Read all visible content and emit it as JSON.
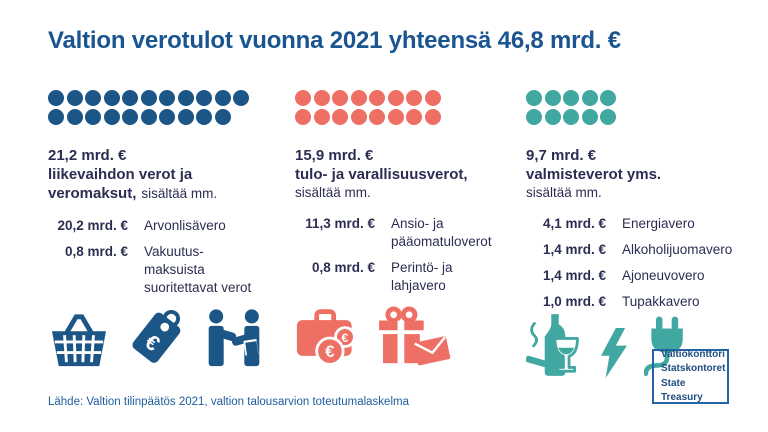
{
  "title": "Valtion verotulot vuonna 2021 yhteensä 46,8 mrd. €",
  "source": "Lähde: Valtion tilinpäätös 2021, valtion talousarvion toteutumalaskelma",
  "logo": {
    "lines": [
      "Valtiokonttori",
      "Statskontoret",
      "State Treasury"
    ]
  },
  "colors": {
    "title": "#1A5591",
    "text": "#2B2E52",
    "blue": "#1B5687",
    "coral": "#EE6F64",
    "teal": "#41A8A1",
    "source_text": "#1D5C9E",
    "divider": "#E6E6E6",
    "logo_border": "#2563A8",
    "background": "#FFFFFF"
  },
  "chart_data": {
    "type": "bar",
    "title": "Valtion verotulot vuonna 2021 yhteensä 46,8 mrd. €",
    "unit": "mrd. €",
    "total": 46.8,
    "categories": [
      "liikevaihdon verot ja veromaksut",
      "tulo- ja varallisuusverot",
      "valmisteverot yms."
    ],
    "values": [
      21.2,
      15.9,
      9.7
    ],
    "dot_unit_value": 1,
    "breakdown": [
      {
        "category": "liikevaihdon verot ja veromaksut",
        "items": [
          {
            "label": "Arvonlisävero",
            "value": 20.2
          },
          {
            "label": "Vakuutusmaksuista suoritettavat verot",
            "value": 0.8
          }
        ]
      },
      {
        "category": "tulo- ja varallisuusverot",
        "items": [
          {
            "label": "Ansio- ja pääomatuloverot",
            "value": 11.3
          },
          {
            "label": "Perintö- ja lahjavero",
            "value": 0.8
          }
        ]
      },
      {
        "category": "valmisteverot yms.",
        "items": [
          {
            "label": "Energiavero",
            "value": 4.1
          },
          {
            "label": "Alkoholijuomavero",
            "value": 1.4
          },
          {
            "label": "Ajoneuvovero",
            "value": 1.4
          },
          {
            "label": "Tupakkavero",
            "value": 1.0
          }
        ]
      }
    ]
  },
  "columns": [
    {
      "id": "turnover-taxes",
      "color": "#1B5687",
      "dots": {
        "row1": 11,
        "row2": 10
      },
      "heading": {
        "amount": "21,2 mrd. €",
        "name_lines": [
          "liikevaihdon verot ja",
          "veromaksut,"
        ],
        "note": "sisältää mm.",
        "note_inline": true
      },
      "items": [
        {
          "value": "20,2 mrd. €",
          "label_lines": [
            "Arvonlisävero"
          ]
        },
        {
          "value": "0,8 mrd. €",
          "label_lines": [
            "Vakuutus-",
            "maksuista",
            "suoritettavat verot"
          ]
        }
      ],
      "icons": [
        "shopping-basket",
        "price-tag-euro",
        "handshake"
      ]
    },
    {
      "id": "income-wealth-taxes",
      "color": "#EE6F64",
      "dots": {
        "row1": 8,
        "row2": 8
      },
      "heading": {
        "amount": "15,9 mrd. €",
        "name_lines": [
          "tulo- ja varallisuusverot,"
        ],
        "note": "sisältää mm.",
        "note_inline": false
      },
      "items": [
        {
          "value": "11,3 mrd. €",
          "label_lines": [
            "Ansio- ja",
            "pääomatuloverot"
          ]
        },
        {
          "value": "0,8 mrd. €",
          "label_lines": [
            "Perintö- ja",
            "lahjavero"
          ]
        }
      ],
      "icons": [
        "briefcase-euro",
        "gift-envelope"
      ]
    },
    {
      "id": "excise-taxes",
      "color": "#41A8A1",
      "dots": {
        "row1": 5,
        "row2": 5
      },
      "heading": {
        "amount": "9,7 mrd. €",
        "name_lines": [
          "valmisteverot yms."
        ],
        "note": "sisältää mm.",
        "note_inline": false
      },
      "items": [
        {
          "value": "4,1 mrd. €",
          "label_lines": [
            "Energiavero"
          ]
        },
        {
          "value": "1,4 mrd. €",
          "label_lines": [
            "Alkoholijuomavero"
          ]
        },
        {
          "value": "1,4 mrd. €",
          "label_lines": [
            "Ajoneuvovero"
          ]
        },
        {
          "value": "1,0 mrd. €",
          "label_lines": [
            "Tupakkavero"
          ]
        }
      ],
      "icons": [
        "alcohol-tobacco",
        "lightning-bolt",
        "power-plug"
      ]
    }
  ]
}
